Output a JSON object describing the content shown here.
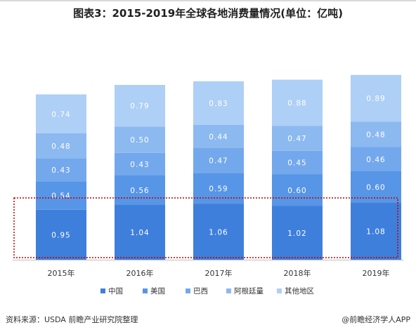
{
  "title": "图表3：2015-2019年全球各地消费量情况(单位：亿吨)",
  "source": "资料来源：USDA 前瞻产业研究院整理",
  "brand": "@前瞻经济学人APP",
  "chart_data": {
    "type": "bar",
    "stacked": true,
    "categories": [
      "2015年",
      "2016年",
      "2017年",
      "2018年",
      "2019年"
    ],
    "series": [
      {
        "name": "中国",
        "values": [
          0.95,
          1.04,
          1.06,
          1.02,
          1.08
        ],
        "color": "#3f7fdc",
        "labels": [
          "0.95",
          "1.04",
          "1.06",
          "1.02",
          "1.08"
        ]
      },
      {
        "name": "美国",
        "values": [
          0.54,
          0.56,
          0.59,
          0.6,
          0.6
        ],
        "color": "#5795e6",
        "labels": [
          "0.54",
          "0.56",
          "0.59",
          "0.60",
          "0.60"
        ]
      },
      {
        "name": "巴西",
        "values": [
          0.43,
          0.43,
          0.47,
          0.45,
          0.46
        ],
        "color": "#73a8ec",
        "labels": [
          "0.43",
          "0.43",
          "0.47",
          "0.45",
          "0.46"
        ]
      },
      {
        "name": "阿根廷量",
        "values": [
          0.48,
          0.5,
          0.44,
          0.47,
          0.48
        ],
        "color": "#8cb9f0",
        "labels": [
          "0.48",
          "0.50",
          "0.44",
          "0.47",
          "0.48"
        ]
      },
      {
        "name": "其他地区",
        "values": [
          0.74,
          0.79,
          0.83,
          0.88,
          0.89
        ],
        "color": "#aecff6",
        "labels": [
          "0.74",
          "0.79",
          "0.83",
          "0.88",
          "0.89"
        ]
      }
    ],
    "legend_position": "bottom",
    "grid": false,
    "highlight": "dotted red box around 中国 series"
  }
}
